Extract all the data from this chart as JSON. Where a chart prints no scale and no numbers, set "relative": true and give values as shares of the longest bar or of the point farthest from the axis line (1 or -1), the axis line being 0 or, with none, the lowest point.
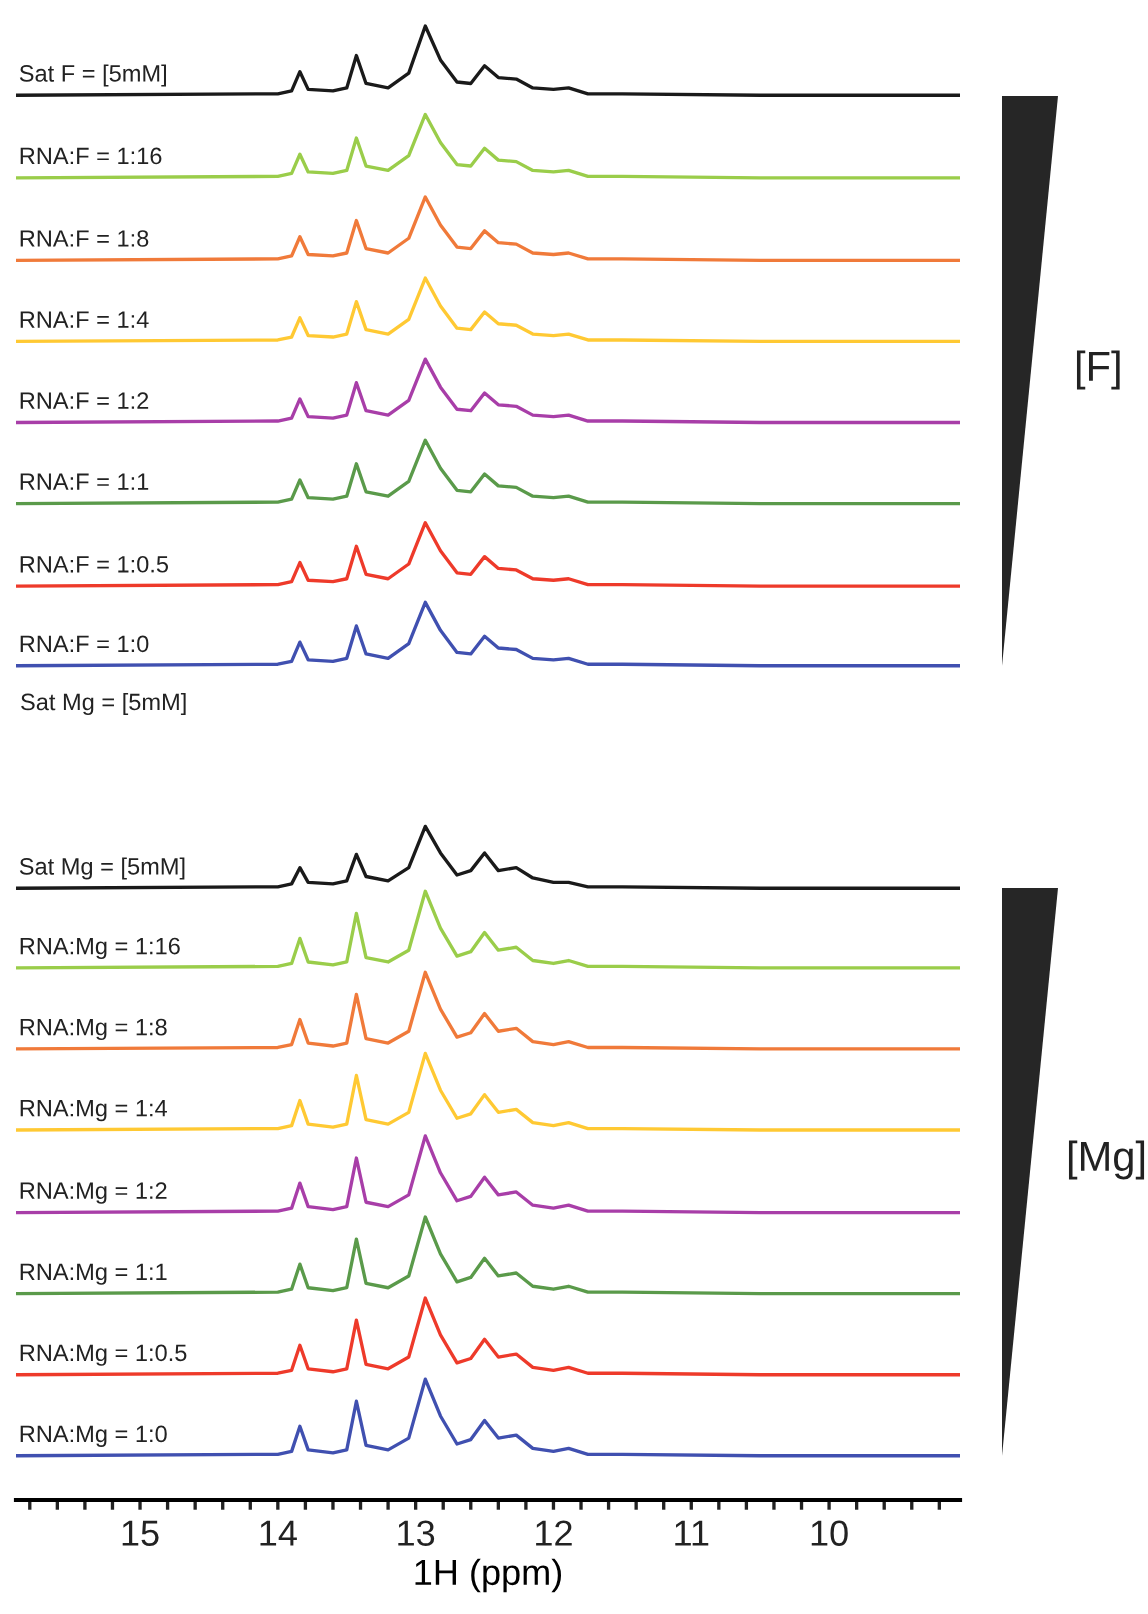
{
  "chart_data": {
    "type": "line",
    "relative": true,
    "xlim": [
      15.9,
      9.05
    ],
    "tick_labels": "x",
    "grid": false,
    "xlabel": "1H (ppm)",
    "xticks": [
      {
        "value": 15.8,
        "label": null
      },
      {
        "value": 15.6,
        "label": null
      },
      {
        "value": 15.4,
        "label": null
      },
      {
        "value": 15.2,
        "label": null
      },
      15,
      {
        "value": 14.8,
        "label": null
      },
      {
        "value": 14.6,
        "label": null
      },
      {
        "value": 14.4,
        "label": null
      },
      {
        "value": 14.2,
        "label": null
      },
      14,
      {
        "value": 13.8,
        "label": null
      },
      {
        "value": 13.6,
        "label": null
      },
      {
        "value": 13.4,
        "label": null
      },
      {
        "value": 13.2,
        "label": null
      },
      13,
      {
        "value": 12.8,
        "label": null
      },
      {
        "value": 12.6,
        "label": null
      },
      {
        "value": 12.4,
        "label": null
      },
      {
        "value": 12.2,
        "label": null
      },
      12,
      {
        "value": 11.8,
        "label": null
      },
      {
        "value": 11.6,
        "label": null
      },
      {
        "value": 11.4,
        "label": null
      },
      {
        "value": 11.2,
        "label": null
      },
      11,
      {
        "value": 10.8,
        "label": null
      },
      {
        "value": 10.6,
        "label": null
      },
      {
        "value": 10.4,
        "label": null
      },
      {
        "value": 10.2,
        "label": null
      },
      10,
      {
        "value": 9.8,
        "label": null
      },
      {
        "value": 9.6,
        "label": null
      },
      {
        "value": 9.4,
        "label": null
      },
      {
        "value": 9.2,
        "label": null
      }
    ],
    "x": [
      15.9,
      14.0,
      13.9,
      13.84,
      13.78,
      13.6,
      13.5,
      13.43,
      13.36,
      13.2,
      13.05,
      12.93,
      12.82,
      12.7,
      12.6,
      12.5,
      12.4,
      12.27,
      12.15,
      12.0,
      11.89,
      11.75,
      11.5,
      10.5,
      9.05
    ],
    "series": [
      {
        "name": "Sat F = [5mM]",
        "color": "#1a1a1a",
        "values": [
          0.953,
          0.954,
          0.956,
          0.969,
          0.957,
          0.956,
          0.958,
          0.98,
          0.961,
          0.958,
          0.968,
          1.0,
          0.977,
          0.962,
          0.961,
          0.973,
          0.965,
          0.964,
          0.958,
          0.957,
          0.958,
          0.954,
          0.954,
          0.953,
          0.953
        ]
      },
      {
        "name": "RNA:F = 1:16",
        "color": "#9acd4a",
        "values": [
          0.897,
          0.898,
          0.9,
          0.913,
          0.901,
          0.9,
          0.902,
          0.924,
          0.905,
          0.902,
          0.912,
          0.94,
          0.921,
          0.906,
          0.905,
          0.917,
          0.909,
          0.908,
          0.902,
          0.901,
          0.902,
          0.898,
          0.898,
          0.897,
          0.897
        ]
      },
      {
        "name": "RNA:F = 1:8",
        "color": "#f07a3a",
        "values": [
          0.841,
          0.842,
          0.844,
          0.857,
          0.845,
          0.844,
          0.846,
          0.868,
          0.849,
          0.846,
          0.856,
          0.884,
          0.865,
          0.85,
          0.849,
          0.861,
          0.853,
          0.852,
          0.846,
          0.845,
          0.846,
          0.842,
          0.842,
          0.841,
          0.841
        ]
      },
      {
        "name": "RNA:F = 1:4",
        "color": "#ffc933",
        "values": [
          0.786,
          0.787,
          0.789,
          0.802,
          0.79,
          0.789,
          0.791,
          0.813,
          0.794,
          0.791,
          0.801,
          0.829,
          0.81,
          0.795,
          0.794,
          0.806,
          0.798,
          0.797,
          0.791,
          0.79,
          0.791,
          0.787,
          0.787,
          0.786,
          0.786
        ]
      },
      {
        "name": "RNA:F = 1:2",
        "color": "#a83ea8",
        "values": [
          0.731,
          0.732,
          0.734,
          0.747,
          0.735,
          0.734,
          0.736,
          0.758,
          0.739,
          0.736,
          0.746,
          0.774,
          0.755,
          0.74,
          0.739,
          0.751,
          0.743,
          0.742,
          0.736,
          0.735,
          0.736,
          0.732,
          0.732,
          0.731,
          0.731
        ]
      },
      {
        "name": "RNA:F = 1:1",
        "color": "#5a9a4a",
        "values": [
          0.676,
          0.677,
          0.679,
          0.692,
          0.68,
          0.679,
          0.681,
          0.703,
          0.684,
          0.681,
          0.691,
          0.719,
          0.7,
          0.685,
          0.684,
          0.696,
          0.688,
          0.687,
          0.681,
          0.68,
          0.681,
          0.677,
          0.677,
          0.676,
          0.676
        ]
      },
      {
        "name": "RNA:F = 1:0.5",
        "color": "#ee3a2a",
        "values": [
          0.62,
          0.621,
          0.623,
          0.636,
          0.624,
          0.623,
          0.625,
          0.647,
          0.628,
          0.625,
          0.635,
          0.663,
          0.644,
          0.629,
          0.628,
          0.64,
          0.632,
          0.631,
          0.625,
          0.624,
          0.625,
          0.621,
          0.621,
          0.62,
          0.62
        ]
      },
      {
        "name": "RNA:F = 1:0",
        "color": "#4050b0",
        "values": [
          0.566,
          0.567,
          0.569,
          0.582,
          0.57,
          0.569,
          0.571,
          0.593,
          0.574,
          0.571,
          0.581,
          0.609,
          0.59,
          0.575,
          0.574,
          0.586,
          0.578,
          0.577,
          0.571,
          0.57,
          0.571,
          0.567,
          0.567,
          0.566,
          0.566
        ]
      },
      {
        "name": "Sat Mg = [5mM]",
        "color": "#1a1a1a",
        "values": [
          0.415,
          0.416,
          0.418,
          0.429,
          0.419,
          0.418,
          0.42,
          0.438,
          0.423,
          0.42,
          0.429,
          0.457,
          0.439,
          0.424,
          0.427,
          0.439,
          0.427,
          0.429,
          0.422,
          0.419,
          0.419,
          0.416,
          0.416,
          0.415,
          0.415
        ]
      },
      {
        "name": "RNA:Mg = 1:16",
        "color": "#9acd4a",
        "values": [
          0.361,
          0.362,
          0.364,
          0.381,
          0.365,
          0.363,
          0.365,
          0.398,
          0.368,
          0.365,
          0.373,
          0.413,
          0.388,
          0.369,
          0.372,
          0.385,
          0.373,
          0.375,
          0.366,
          0.364,
          0.366,
          0.362,
          0.362,
          0.361,
          0.361
        ]
      },
      {
        "name": "RNA:Mg = 1:8",
        "color": "#f07a3a",
        "values": [
          0.306,
          0.307,
          0.309,
          0.326,
          0.31,
          0.308,
          0.31,
          0.343,
          0.313,
          0.31,
          0.318,
          0.358,
          0.333,
          0.314,
          0.317,
          0.33,
          0.318,
          0.32,
          0.311,
          0.309,
          0.311,
          0.307,
          0.307,
          0.306,
          0.306
        ]
      },
      {
        "name": "RNA:Mg = 1:4",
        "color": "#ffc933",
        "values": [
          0.251,
          0.252,
          0.254,
          0.271,
          0.255,
          0.253,
          0.255,
          0.288,
          0.258,
          0.255,
          0.263,
          0.303,
          0.278,
          0.259,
          0.262,
          0.275,
          0.263,
          0.265,
          0.256,
          0.254,
          0.256,
          0.252,
          0.252,
          0.251,
          0.251
        ]
      },
      {
        "name": "RNA:Mg = 1:2",
        "color": "#a83ea8",
        "values": [
          0.195,
          0.196,
          0.198,
          0.215,
          0.199,
          0.197,
          0.199,
          0.232,
          0.202,
          0.199,
          0.207,
          0.247,
          0.222,
          0.203,
          0.206,
          0.219,
          0.207,
          0.209,
          0.2,
          0.198,
          0.2,
          0.196,
          0.196,
          0.195,
          0.195
        ]
      },
      {
        "name": "RNA:Mg = 1:1",
        "color": "#5a9a4a",
        "values": [
          0.14,
          0.141,
          0.143,
          0.16,
          0.144,
          0.142,
          0.144,
          0.177,
          0.147,
          0.144,
          0.152,
          0.192,
          0.167,
          0.148,
          0.151,
          0.164,
          0.152,
          0.154,
          0.145,
          0.143,
          0.145,
          0.141,
          0.141,
          0.14,
          0.14
        ]
      },
      {
        "name": "RNA:Mg = 1:0.5",
        "color": "#ee3a2a",
        "values": [
          0.085,
          0.086,
          0.088,
          0.105,
          0.089,
          0.087,
          0.089,
          0.122,
          0.092,
          0.089,
          0.097,
          0.137,
          0.112,
          0.093,
          0.096,
          0.109,
          0.097,
          0.099,
          0.09,
          0.088,
          0.09,
          0.086,
          0.086,
          0.085,
          0.085
        ]
      },
      {
        "name": "RNA:Mg = 1:0",
        "color": "#4050b0",
        "values": [
          0.03,
          0.031,
          0.033,
          0.05,
          0.034,
          0.032,
          0.034,
          0.067,
          0.037,
          0.034,
          0.042,
          0.082,
          0.057,
          0.038,
          0.041,
          0.054,
          0.042,
          0.044,
          0.035,
          0.033,
          0.035,
          0.031,
          0.031,
          0.03,
          0.03
        ]
      }
    ],
    "annotations": [
      "Sat Mg = [5mM]",
      "[F]",
      "[Mg]"
    ]
  }
}
